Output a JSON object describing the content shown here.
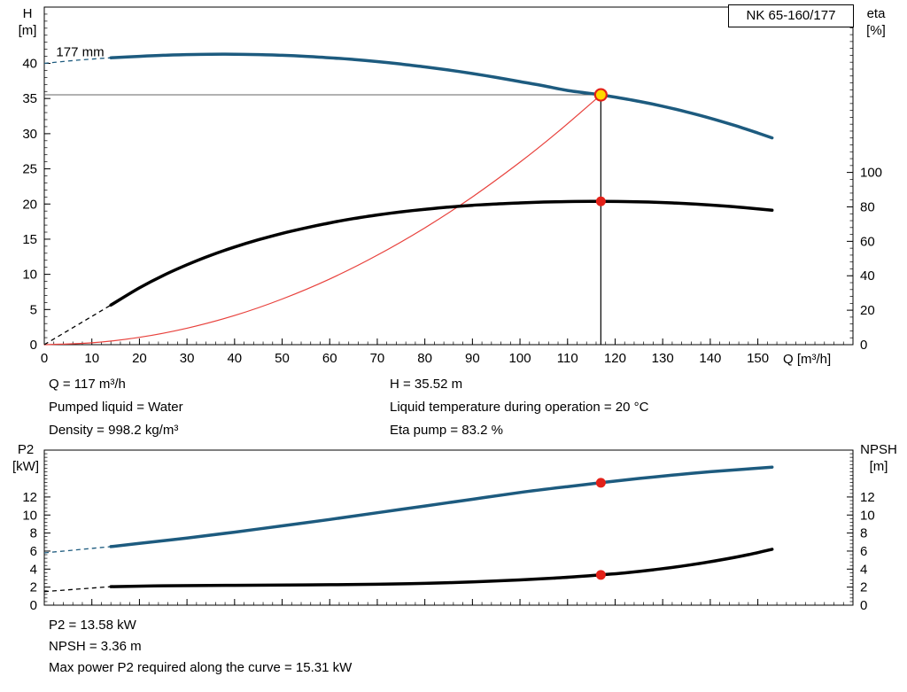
{
  "info_top": {
    "q": "Q = 117 m³/h",
    "h": "H = 35.52 m",
    "liquid": "Pumped liquid = Water",
    "temp": "Liquid temperature during operation = 20 °C",
    "density": "Density = 998.2 kg/m³",
    "eta": "Eta pump = 83.2 %"
  },
  "info_bottom": {
    "p2": "P2 = 13.58 kW",
    "npsh": "NPSH = 3.36 m",
    "maxp": "Max power P2 required along the curve = 15.31 kW"
  },
  "chart_data": [
    {
      "type": "line",
      "name": "qh-eta-chart",
      "title": "NK 65-160/177",
      "xlabel": "Q [m³/h]",
      "ylabel_left": [
        "H",
        "[m]"
      ],
      "ylabel_right": [
        "eta",
        "[%]"
      ],
      "xlim": [
        0,
        170
      ],
      "ylim_left": [
        0,
        48
      ],
      "ylim_right": [
        0,
        196
      ],
      "xticks": [
        0,
        10,
        20,
        30,
        40,
        50,
        60,
        70,
        80,
        90,
        100,
        110,
        120,
        130,
        140,
        150
      ],
      "yticks_left": [
        0,
        5,
        10,
        15,
        20,
        25,
        30,
        35,
        40
      ],
      "yticks_right": [
        0,
        20,
        40,
        60,
        80,
        100
      ],
      "grid": false,
      "legend": "none",
      "annotation": {
        "text": "177 mm",
        "q": 2.5,
        "v": 41.0
      },
      "crosshair": {
        "q": 117,
        "h": 35.52
      },
      "series": [
        {
          "name": "system-curve",
          "axis": "left",
          "color": "#e8413c",
          "width": 1.2,
          "points": [
            [
              0,
              0
            ],
            [
              10,
              0.26
            ],
            [
              20,
              1.04
            ],
            [
              30,
              2.34
            ],
            [
              40,
              4.15
            ],
            [
              50,
              6.49
            ],
            [
              60,
              9.34
            ],
            [
              70,
              12.72
            ],
            [
              80,
              16.61
            ],
            [
              90,
              21.02
            ],
            [
              100,
              25.95
            ],
            [
              108,
              30.27
            ],
            [
              117,
              35.52
            ]
          ]
        },
        {
          "name": "eta-curve",
          "axis": "right",
          "color": "#000000",
          "width": 3.5,
          "dash_lead": [
            [
              0,
              0
            ],
            [
              14,
              23
            ]
          ],
          "points": [
            [
              14,
              23
            ],
            [
              20,
              33
            ],
            [
              25,
              40.2
            ],
            [
              30,
              46.4
            ],
            [
              35,
              51.9
            ],
            [
              40,
              56.7
            ],
            [
              45,
              60.9
            ],
            [
              50,
              64.6
            ],
            [
              55,
              67.8
            ],
            [
              60,
              70.7
            ],
            [
              65,
              73.2
            ],
            [
              70,
              75.3
            ],
            [
              75,
              77.1
            ],
            [
              80,
              78.6
            ],
            [
              85,
              79.9
            ],
            [
              90,
              80.9
            ],
            [
              95,
              81.7
            ],
            [
              100,
              82.3
            ],
            [
              105,
              82.8
            ],
            [
              110,
              83.1
            ],
            [
              115,
              83.2
            ],
            [
              117,
              83.2
            ],
            [
              122,
              83.1
            ],
            [
              127,
              82.8
            ],
            [
              132,
              82.3
            ],
            [
              137,
              81.6
            ],
            [
              142,
              80.7
            ],
            [
              147,
              79.6
            ],
            [
              153,
              78.1
            ]
          ]
        },
        {
          "name": "head-curve",
          "axis": "left",
          "color": "#1d5b7f",
          "width": 3.5,
          "dash_lead": [
            [
              0,
              40.0
            ],
            [
              7,
              40.45
            ],
            [
              14,
              40.8
            ]
          ],
          "points": [
            [
              14,
              40.8
            ],
            [
              20,
              41.0
            ],
            [
              25,
              41.15
            ],
            [
              30,
              41.25
            ],
            [
              35,
              41.3
            ],
            [
              40,
              41.3
            ],
            [
              45,
              41.25
            ],
            [
              50,
              41.15
            ],
            [
              55,
              41.0
            ],
            [
              60,
              40.8
            ],
            [
              65,
              40.55
            ],
            [
              70,
              40.25
            ],
            [
              75,
              39.9
            ],
            [
              80,
              39.5
            ],
            [
              85,
              39.05
            ],
            [
              90,
              38.55
            ],
            [
              95,
              38.0
            ],
            [
              100,
              37.4
            ],
            [
              105,
              36.8
            ],
            [
              110,
              36.15
            ],
            [
              115,
              35.7
            ],
            [
              117,
              35.52
            ],
            [
              120,
              35.2
            ],
            [
              125,
              34.6
            ],
            [
              130,
              33.9
            ],
            [
              135,
              33.1
            ],
            [
              140,
              32.2
            ],
            [
              145,
              31.2
            ],
            [
              150,
              30.1
            ],
            [
              153,
              29.4
            ]
          ]
        }
      ],
      "markers": [
        {
          "name": "eta-point",
          "q": 117,
          "v": 83.2,
          "axis": "right",
          "r": 5.5,
          "fill": "#e32119"
        },
        {
          "name": "duty-point",
          "q": 117,
          "v": 35.52,
          "axis": "left",
          "r": 6.5,
          "fill": "#ffd800",
          "stroke": "#e32119",
          "stroke_width": 2.2
        }
      ]
    },
    {
      "type": "line",
      "name": "p2-npsh-chart",
      "title": "",
      "xlabel": "",
      "ylabel_left": [
        "P2",
        "[kW]"
      ],
      "ylabel_right": [
        "NPSH",
        "[m]"
      ],
      "xlim": [
        0,
        170
      ],
      "ylim_left": [
        0,
        17.2
      ],
      "ylim_right": [
        0,
        17.2
      ],
      "xticks": [
        0,
        10,
        20,
        30,
        40,
        50,
        60,
        70,
        80,
        90,
        100,
        110,
        120,
        130,
        140,
        150
      ],
      "yticks_left": [
        0,
        2,
        4,
        6,
        8,
        10,
        12
      ],
      "yticks_right": [
        0,
        2,
        4,
        6,
        8,
        10,
        12
      ],
      "grid": false,
      "legend": "none",
      "series": [
        {
          "name": "p2-curve",
          "axis": "left",
          "color": "#1d5b7f",
          "width": 3.5,
          "dash_lead": [
            [
              0,
              5.8
            ],
            [
              14,
              6.5
            ]
          ],
          "points": [
            [
              14,
              6.5
            ],
            [
              20,
              6.85
            ],
            [
              30,
              7.45
            ],
            [
              40,
              8.1
            ],
            [
              50,
              8.8
            ],
            [
              60,
              9.5
            ],
            [
              70,
              10.25
            ],
            [
              80,
              11.0
            ],
            [
              90,
              11.75
            ],
            [
              100,
              12.5
            ],
            [
              110,
              13.15
            ],
            [
              117,
              13.58
            ],
            [
              125,
              14.05
            ],
            [
              132,
              14.42
            ],
            [
              140,
              14.8
            ],
            [
              147,
              15.08
            ],
            [
              153,
              15.31
            ]
          ]
        },
        {
          "name": "npsh-curve",
          "axis": "right",
          "color": "#000000",
          "width": 3.5,
          "dash_lead": [
            [
              0,
              1.5
            ],
            [
              14,
              2.05
            ]
          ],
          "points": [
            [
              14,
              2.05
            ],
            [
              25,
              2.15
            ],
            [
              40,
              2.2
            ],
            [
              55,
              2.25
            ],
            [
              70,
              2.32
            ],
            [
              80,
              2.42
            ],
            [
              90,
              2.58
            ],
            [
              100,
              2.8
            ],
            [
              107,
              3.0
            ],
            [
              112,
              3.17
            ],
            [
              117,
              3.36
            ],
            [
              122,
              3.58
            ],
            [
              128,
              3.92
            ],
            [
              135,
              4.4
            ],
            [
              142,
              5.0
            ],
            [
              148,
              5.6
            ],
            [
              153,
              6.2
            ]
          ]
        }
      ],
      "markers": [
        {
          "name": "p2-point",
          "q": 117,
          "v": 13.58,
          "axis": "left",
          "r": 5.5,
          "fill": "#e32119"
        },
        {
          "name": "npsh-point",
          "q": 117,
          "v": 3.36,
          "axis": "right",
          "r": 5.5,
          "fill": "#e32119"
        }
      ]
    }
  ]
}
